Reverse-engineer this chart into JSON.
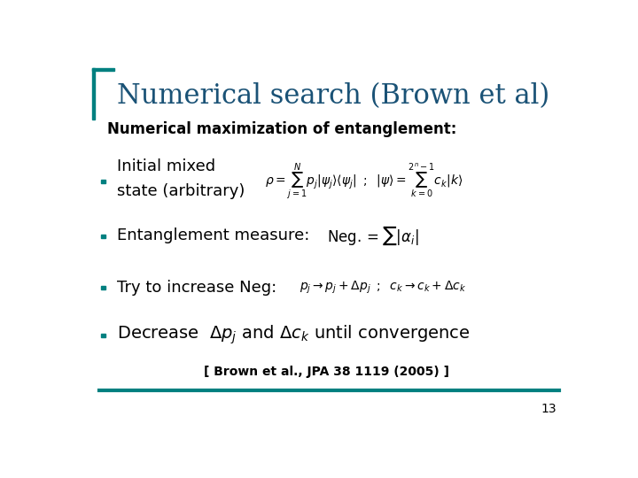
{
  "title": "Numerical search (Brown et al)",
  "title_color": "#1a5276",
  "subtitle": "Numerical maximization of entanglement:",
  "bullet_color": "#008080",
  "background_color": "#ffffff",
  "border_color": "#008080",
  "title_fontsize": 22,
  "subtitle_fontsize": 12,
  "bullet_fontsize": 13,
  "citation": "[ Brown et al., JPA 38 1119 (2005) ]",
  "page_number": "13",
  "left_bar_color": "#008080",
  "bottom_line_color": "#008080"
}
